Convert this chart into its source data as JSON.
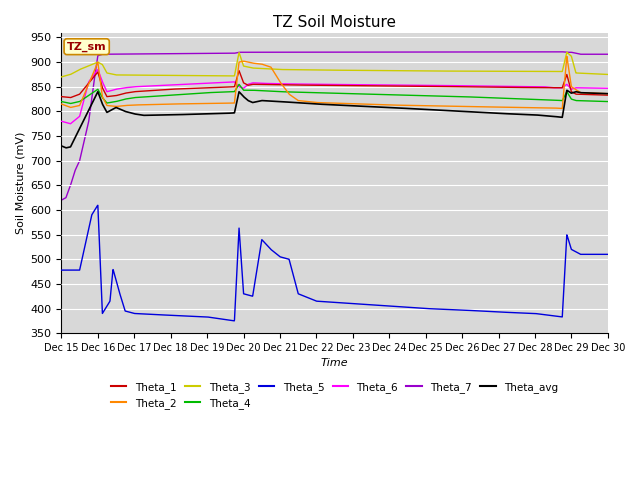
{
  "title": "TZ Soil Moisture",
  "ylabel": "Soil Moisture (mV)",
  "xlabel": "Time",
  "ylim": [
    350,
    960
  ],
  "yticks": [
    350,
    400,
    450,
    500,
    550,
    600,
    650,
    700,
    750,
    800,
    850,
    900,
    950
  ],
  "bg_color": "#d8d8d8",
  "legend_label": "TZ_sm",
  "series_colors": {
    "Theta_1": "#cc0000",
    "Theta_2": "#ff8800",
    "Theta_3": "#cccc00",
    "Theta_4": "#00bb00",
    "Theta_5": "#0000dd",
    "Theta_6": "#ff00ff",
    "Theta_7": "#9900cc",
    "Theta_avg": "#000000"
  },
  "figsize": [
    6.4,
    4.8
  ],
  "dpi": 100
}
